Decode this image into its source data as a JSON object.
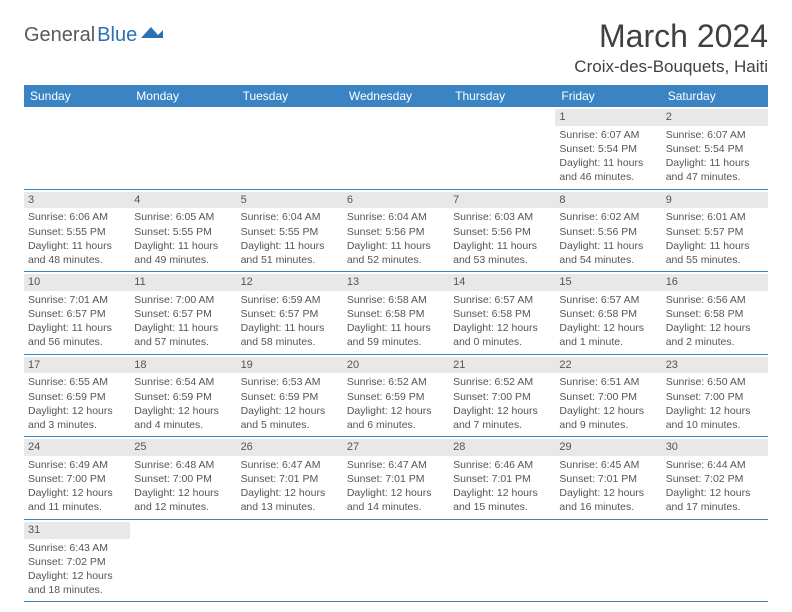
{
  "logo": {
    "part1": "General",
    "part2": "Blue"
  },
  "title": "March 2024",
  "location": "Croix-des-Bouquets, Haiti",
  "colors": {
    "header_bg": "#3b84c4",
    "header_text": "#ffffff",
    "daynum_bg": "#e8e8e8",
    "row_border": "#3b84c4",
    "body_text": "#555555"
  },
  "weekdays": [
    "Sunday",
    "Monday",
    "Tuesday",
    "Wednesday",
    "Thursday",
    "Friday",
    "Saturday"
  ],
  "weeks": [
    [
      null,
      null,
      null,
      null,
      null,
      {
        "n": "1",
        "sr": "Sunrise: 6:07 AM",
        "ss": "Sunset: 5:54 PM",
        "dl1": "Daylight: 11 hours",
        "dl2": "and 46 minutes."
      },
      {
        "n": "2",
        "sr": "Sunrise: 6:07 AM",
        "ss": "Sunset: 5:54 PM",
        "dl1": "Daylight: 11 hours",
        "dl2": "and 47 minutes."
      }
    ],
    [
      {
        "n": "3",
        "sr": "Sunrise: 6:06 AM",
        "ss": "Sunset: 5:55 PM",
        "dl1": "Daylight: 11 hours",
        "dl2": "and 48 minutes."
      },
      {
        "n": "4",
        "sr": "Sunrise: 6:05 AM",
        "ss": "Sunset: 5:55 PM",
        "dl1": "Daylight: 11 hours",
        "dl2": "and 49 minutes."
      },
      {
        "n": "5",
        "sr": "Sunrise: 6:04 AM",
        "ss": "Sunset: 5:55 PM",
        "dl1": "Daylight: 11 hours",
        "dl2": "and 51 minutes."
      },
      {
        "n": "6",
        "sr": "Sunrise: 6:04 AM",
        "ss": "Sunset: 5:56 PM",
        "dl1": "Daylight: 11 hours",
        "dl2": "and 52 minutes."
      },
      {
        "n": "7",
        "sr": "Sunrise: 6:03 AM",
        "ss": "Sunset: 5:56 PM",
        "dl1": "Daylight: 11 hours",
        "dl2": "and 53 minutes."
      },
      {
        "n": "8",
        "sr": "Sunrise: 6:02 AM",
        "ss": "Sunset: 5:56 PM",
        "dl1": "Daylight: 11 hours",
        "dl2": "and 54 minutes."
      },
      {
        "n": "9",
        "sr": "Sunrise: 6:01 AM",
        "ss": "Sunset: 5:57 PM",
        "dl1": "Daylight: 11 hours",
        "dl2": "and 55 minutes."
      }
    ],
    [
      {
        "n": "10",
        "sr": "Sunrise: 7:01 AM",
        "ss": "Sunset: 6:57 PM",
        "dl1": "Daylight: 11 hours",
        "dl2": "and 56 minutes."
      },
      {
        "n": "11",
        "sr": "Sunrise: 7:00 AM",
        "ss": "Sunset: 6:57 PM",
        "dl1": "Daylight: 11 hours",
        "dl2": "and 57 minutes."
      },
      {
        "n": "12",
        "sr": "Sunrise: 6:59 AM",
        "ss": "Sunset: 6:57 PM",
        "dl1": "Daylight: 11 hours",
        "dl2": "and 58 minutes."
      },
      {
        "n": "13",
        "sr": "Sunrise: 6:58 AM",
        "ss": "Sunset: 6:58 PM",
        "dl1": "Daylight: 11 hours",
        "dl2": "and 59 minutes."
      },
      {
        "n": "14",
        "sr": "Sunrise: 6:57 AM",
        "ss": "Sunset: 6:58 PM",
        "dl1": "Daylight: 12 hours",
        "dl2": "and 0 minutes."
      },
      {
        "n": "15",
        "sr": "Sunrise: 6:57 AM",
        "ss": "Sunset: 6:58 PM",
        "dl1": "Daylight: 12 hours",
        "dl2": "and 1 minute."
      },
      {
        "n": "16",
        "sr": "Sunrise: 6:56 AM",
        "ss": "Sunset: 6:58 PM",
        "dl1": "Daylight: 12 hours",
        "dl2": "and 2 minutes."
      }
    ],
    [
      {
        "n": "17",
        "sr": "Sunrise: 6:55 AM",
        "ss": "Sunset: 6:59 PM",
        "dl1": "Daylight: 12 hours",
        "dl2": "and 3 minutes."
      },
      {
        "n": "18",
        "sr": "Sunrise: 6:54 AM",
        "ss": "Sunset: 6:59 PM",
        "dl1": "Daylight: 12 hours",
        "dl2": "and 4 minutes."
      },
      {
        "n": "19",
        "sr": "Sunrise: 6:53 AM",
        "ss": "Sunset: 6:59 PM",
        "dl1": "Daylight: 12 hours",
        "dl2": "and 5 minutes."
      },
      {
        "n": "20",
        "sr": "Sunrise: 6:52 AM",
        "ss": "Sunset: 6:59 PM",
        "dl1": "Daylight: 12 hours",
        "dl2": "and 6 minutes."
      },
      {
        "n": "21",
        "sr": "Sunrise: 6:52 AM",
        "ss": "Sunset: 7:00 PM",
        "dl1": "Daylight: 12 hours",
        "dl2": "and 7 minutes."
      },
      {
        "n": "22",
        "sr": "Sunrise: 6:51 AM",
        "ss": "Sunset: 7:00 PM",
        "dl1": "Daylight: 12 hours",
        "dl2": "and 9 minutes."
      },
      {
        "n": "23",
        "sr": "Sunrise: 6:50 AM",
        "ss": "Sunset: 7:00 PM",
        "dl1": "Daylight: 12 hours",
        "dl2": "and 10 minutes."
      }
    ],
    [
      {
        "n": "24",
        "sr": "Sunrise: 6:49 AM",
        "ss": "Sunset: 7:00 PM",
        "dl1": "Daylight: 12 hours",
        "dl2": "and 11 minutes."
      },
      {
        "n": "25",
        "sr": "Sunrise: 6:48 AM",
        "ss": "Sunset: 7:00 PM",
        "dl1": "Daylight: 12 hours",
        "dl2": "and 12 minutes."
      },
      {
        "n": "26",
        "sr": "Sunrise: 6:47 AM",
        "ss": "Sunset: 7:01 PM",
        "dl1": "Daylight: 12 hours",
        "dl2": "and 13 minutes."
      },
      {
        "n": "27",
        "sr": "Sunrise: 6:47 AM",
        "ss": "Sunset: 7:01 PM",
        "dl1": "Daylight: 12 hours",
        "dl2": "and 14 minutes."
      },
      {
        "n": "28",
        "sr": "Sunrise: 6:46 AM",
        "ss": "Sunset: 7:01 PM",
        "dl1": "Daylight: 12 hours",
        "dl2": "and 15 minutes."
      },
      {
        "n": "29",
        "sr": "Sunrise: 6:45 AM",
        "ss": "Sunset: 7:01 PM",
        "dl1": "Daylight: 12 hours",
        "dl2": "and 16 minutes."
      },
      {
        "n": "30",
        "sr": "Sunrise: 6:44 AM",
        "ss": "Sunset: 7:02 PM",
        "dl1": "Daylight: 12 hours",
        "dl2": "and 17 minutes."
      }
    ],
    [
      {
        "n": "31",
        "sr": "Sunrise: 6:43 AM",
        "ss": "Sunset: 7:02 PM",
        "dl1": "Daylight: 12 hours",
        "dl2": "and 18 minutes."
      },
      null,
      null,
      null,
      null,
      null,
      null
    ]
  ]
}
